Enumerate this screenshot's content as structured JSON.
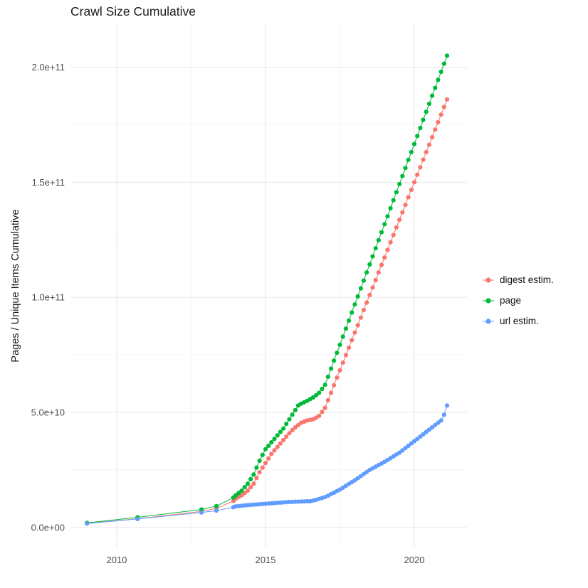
{
  "chart_data": {
    "type": "scatter",
    "title": "Crawl Size Cumulative",
    "xlabel": "",
    "ylabel": "Pages / Unique Items Cumulative",
    "legend_position": "right",
    "grid": {
      "major": "#e7e7e7",
      "minor": "#f3f3f3"
    },
    "xlim": [
      2008.47,
      2021.77
    ],
    "ylim": [
      -9000000000.0,
      219000000000.0
    ],
    "x_ticks": [
      2010,
      2015,
      2020
    ],
    "x_tick_labels": [
      "2010",
      "2015",
      "2020"
    ],
    "x_minor": [
      2012.5,
      2017.5
    ],
    "y_ticks": [
      0,
      50000000000.0,
      100000000000.0,
      150000000000.0,
      200000000000.0
    ],
    "y_tick_labels": [
      "0.0e+00",
      "5.0e+10",
      "1.0e+11",
      "1.5e+11",
      "2.0e+11"
    ],
    "y_minor": [
      25000000000.0,
      75000000000.0,
      125000000000.0,
      175000000000.0
    ],
    "y_unit": 1000000000.0,
    "series": [
      {
        "name": "digest estim.",
        "color": "#F8766D",
        "sparse_points": [
          [
            2009.0,
            1.8
          ],
          [
            2010.7,
            3.8
          ],
          [
            2012.85,
            7.0
          ],
          [
            2013.35,
            8.3
          ],
          [
            2013.92,
            11.5
          ]
        ],
        "dense": {
          "x_start": 2014.0,
          "x_step": 0.1,
          "y_e9": [
            12.5,
            13.3,
            14.0,
            15.0,
            16.0,
            17.5,
            19.0,
            21.5,
            24.0,
            26.0,
            28.0,
            30.0,
            32.0,
            33.5,
            35.0,
            36.5,
            38.0,
            39.5,
            41.0,
            42.3,
            43.5,
            44.5,
            45.5,
            46.0,
            46.5,
            46.8,
            47.0,
            47.7,
            48.5,
            50.2,
            52.0,
            55.3,
            58.5,
            61.8,
            65.1,
            68.3,
            71.6,
            74.9,
            78.1,
            81.4,
            84.7,
            87.9,
            91.2,
            94.5,
            97.7,
            101.0,
            104.3,
            107.5,
            110.8,
            114.1,
            117.3,
            120.6,
            123.9,
            127.1,
            130.4,
            133.7,
            136.9,
            140.2,
            143.5,
            146.7,
            150.0,
            153.3,
            156.5,
            159.8,
            163.1,
            166.3,
            169.6,
            172.9,
            176.1,
            179.4,
            182.7,
            186.0
          ]
        }
      },
      {
        "name": "page",
        "color": "#00BA38",
        "sparse_points": [
          [
            2009.0,
            2.0
          ],
          [
            2010.7,
            4.4
          ],
          [
            2012.85,
            7.8
          ],
          [
            2013.35,
            9.3
          ],
          [
            2013.92,
            13.0
          ]
        ],
        "dense": {
          "x_start": 2014.0,
          "x_step": 0.1,
          "y_e9": [
            14.0,
            15.0,
            16.0,
            17.5,
            19.0,
            21.0,
            23.0,
            26.0,
            29.0,
            31.5,
            34.0,
            35.5,
            37.0,
            38.5,
            40.0,
            41.5,
            43.0,
            45.0,
            47.0,
            49.0,
            51.0,
            53.0,
            53.8,
            54.4,
            55.0,
            55.8,
            56.5,
            57.5,
            58.5,
            60.2,
            62.0,
            65.5,
            69.0,
            72.5,
            75.9,
            79.4,
            82.9,
            86.4,
            89.9,
            93.4,
            96.9,
            100.4,
            103.9,
            107.3,
            110.8,
            114.3,
            117.8,
            121.3,
            124.8,
            128.3,
            131.8,
            135.2,
            138.7,
            142.2,
            145.7,
            149.2,
            152.7,
            156.2,
            159.7,
            163.1,
            166.6,
            170.1,
            173.6,
            177.1,
            180.6,
            184.1,
            187.6,
            191.0,
            194.5,
            198.0,
            201.5,
            205.0
          ]
        }
      },
      {
        "name": "url estim.",
        "color": "#619CFF",
        "sparse_points": [
          [
            2009.0,
            1.7
          ],
          [
            2010.7,
            3.7
          ],
          [
            2012.85,
            6.5
          ],
          [
            2013.35,
            7.3
          ],
          [
            2013.92,
            8.8
          ]
        ],
        "dense": {
          "x_start": 2014.0,
          "x_step": 0.1,
          "y_e9": [
            9.2,
            9.3,
            9.4,
            9.6,
            9.7,
            9.8,
            9.9,
            10.0,
            10.1,
            10.2,
            10.3,
            10.4,
            10.5,
            10.6,
            10.7,
            10.8,
            10.9,
            11.0,
            11.1,
            11.1,
            11.2,
            11.2,
            11.3,
            11.3,
            11.4,
            11.4,
            11.7,
            12.0,
            12.4,
            12.8,
            13.2,
            13.8,
            14.5,
            15.1,
            15.8,
            16.5,
            17.3,
            18.1,
            18.9,
            19.7,
            20.5,
            21.4,
            22.3,
            23.2,
            24.1,
            25.0,
            25.7,
            26.4,
            27.1,
            27.8,
            28.5,
            29.3,
            30.1,
            30.9,
            31.7,
            32.5,
            33.5,
            34.5,
            35.5,
            36.5,
            37.5,
            38.5,
            39.5,
            40.5,
            41.5,
            42.5,
            43.5,
            44.5,
            45.5,
            46.5,
            49.0,
            53.0
          ]
        }
      }
    ]
  }
}
